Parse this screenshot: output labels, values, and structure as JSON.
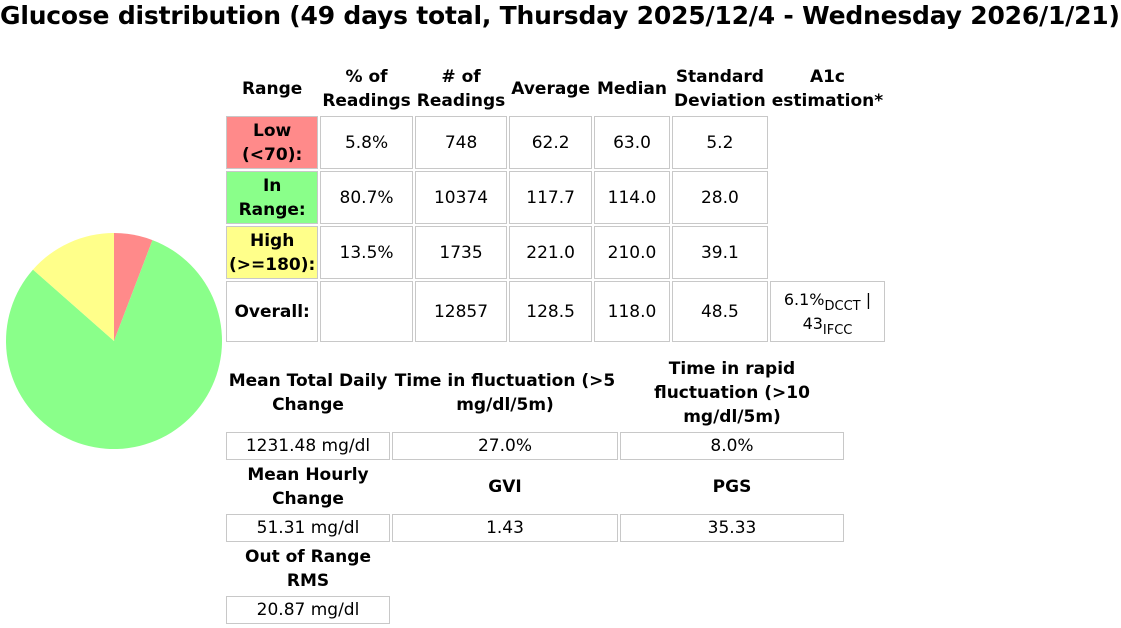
{
  "title": "Glucose distribution (49 days total, Thursday 2025/12/4 - Wednesday 2026/1/21)",
  "stats_table": {
    "headers": {
      "range": "Range",
      "pct_readings": "% of Readings",
      "num_readings": "# of Readings",
      "average": "Average",
      "median": "Median",
      "std_dev": "Standard Deviation",
      "a1c": "A1c estimation*"
    },
    "rows": [
      {
        "label": "Low (<70):",
        "pct": "5.8%",
        "count": "748",
        "average": "62.2",
        "median": "63.0",
        "sd": "5.2"
      },
      {
        "label": "In Range:",
        "pct": "80.7%",
        "count": "10374",
        "average": "117.7",
        "median": "114.0",
        "sd": "28.0"
      },
      {
        "label": "High (>=180):",
        "pct": "13.5%",
        "count": "1735",
        "average": "221.0",
        "median": "210.0",
        "sd": "39.1"
      }
    ],
    "overall": {
      "label": "Overall:",
      "count": "12857",
      "average": "128.5",
      "median": "118.0",
      "sd": "48.5",
      "a1c_dcct_value": "6.1%",
      "a1c_dcct_unit": "DCCT",
      "a1c_separator": " |",
      "a1c_ifcc_value": "43",
      "a1c_ifcc_unit": "IFCC"
    }
  },
  "variability": {
    "mean_total_daily_change": {
      "label": "Mean Total Daily Change",
      "value": "1231.48 mg/dl"
    },
    "time_in_fluctuation": {
      "label": "Time in fluctuation (>5 mg/dl/5m)",
      "value": "27.0%"
    },
    "time_in_rapid_fluctuation": {
      "label": "Time in rapid fluctuation (>10 mg/dl/5m)",
      "value": "8.0%"
    },
    "mean_hourly_change": {
      "label": "Mean Hourly Change",
      "value": "51.31 mg/dl"
    },
    "gvi": {
      "label": "GVI",
      "value": "1.43"
    },
    "pgs": {
      "label": "PGS",
      "value": "35.33"
    },
    "out_of_range_rms": {
      "label": "Out of Range RMS",
      "value": "20.87 mg/dl"
    }
  },
  "chart_data": {
    "type": "pie",
    "title": "",
    "categories": [
      "Low",
      "In Range",
      "High"
    ],
    "values": [
      5.8,
      80.7,
      13.5
    ],
    "colors": [
      "#ff8a8a",
      "#8aff8a",
      "#ffff8a"
    ],
    "start_angle": "top",
    "direction": "clockwise",
    "legend": "none"
  }
}
